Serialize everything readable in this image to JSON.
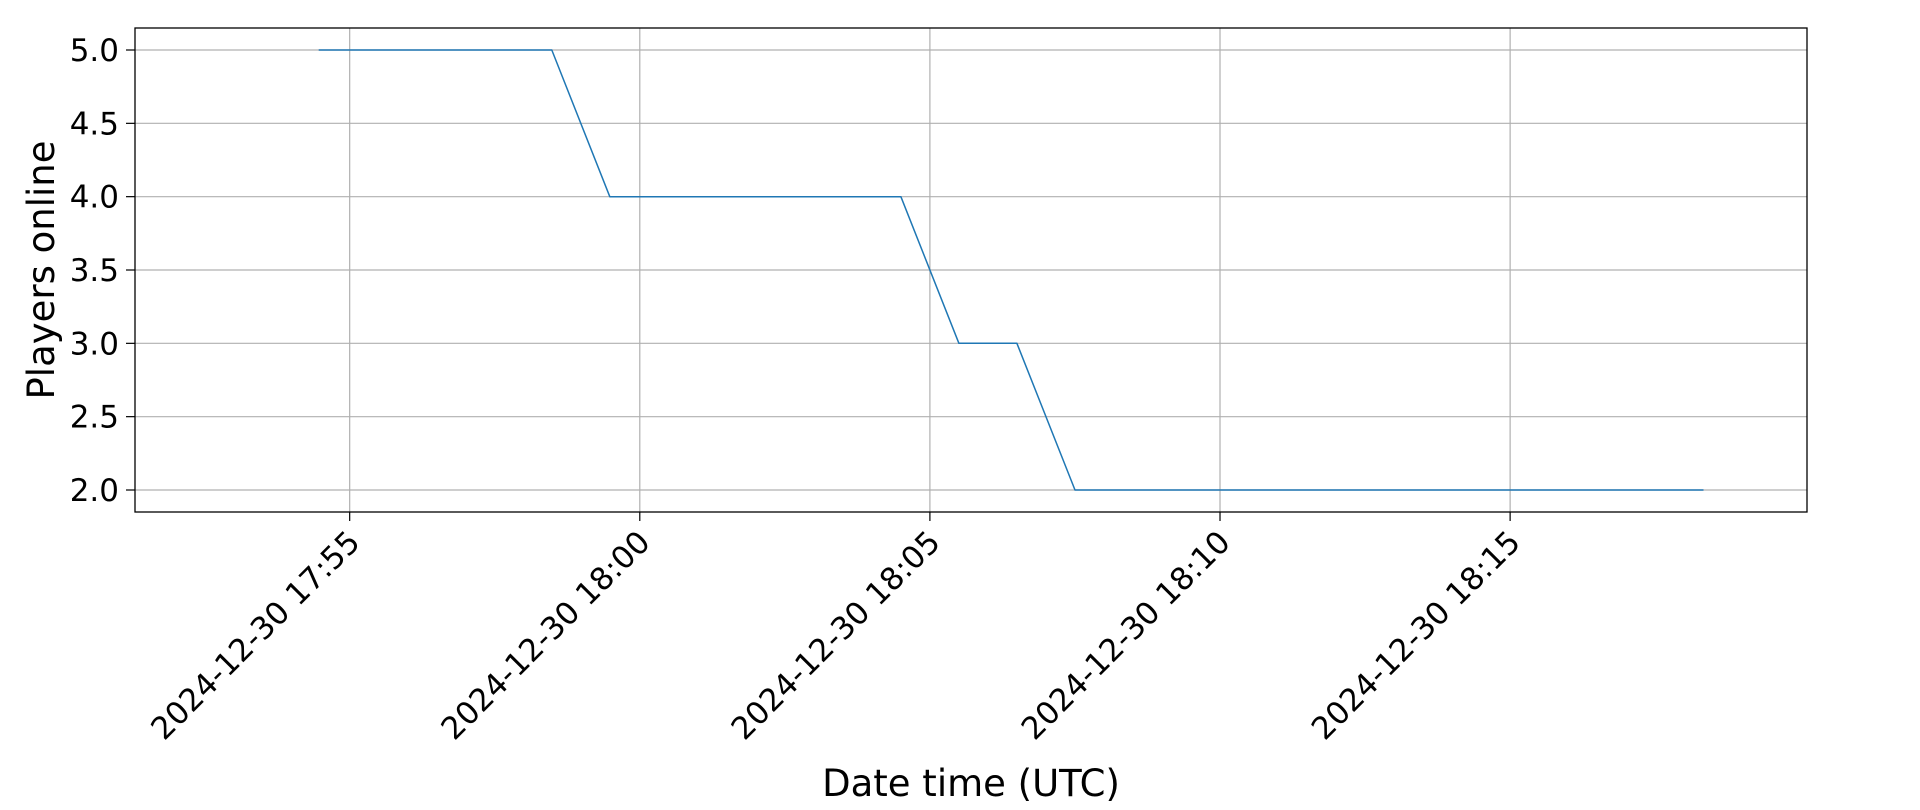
{
  "chart_data": {
    "type": "line",
    "title": "",
    "xlabel": "Date time (UTC)",
    "ylabel": "Players online",
    "xlim": [
      "2024-12-30 17:51:18",
      "2024-12-30 18:20:07"
    ],
    "ylim": [
      1.85,
      5.15
    ],
    "x_ticks": [
      {
        "value": "2024-12-30 17:55:00",
        "label": "2024-12-30 17:55"
      },
      {
        "value": "2024-12-30 18:00:00",
        "label": "2024-12-30 18:00"
      },
      {
        "value": "2024-12-30 18:05:00",
        "label": "2024-12-30 18:05"
      },
      {
        "value": "2024-12-30 18:10:00",
        "label": "2024-12-30 18:10"
      },
      {
        "value": "2024-12-30 18:15:00",
        "label": "2024-12-30 18:15"
      }
    ],
    "y_ticks": [
      {
        "value": 2.0,
        "label": "2.0"
      },
      {
        "value": 2.5,
        "label": "2.5"
      },
      {
        "value": 3.0,
        "label": "3.0"
      },
      {
        "value": 3.5,
        "label": "3.5"
      },
      {
        "value": 4.0,
        "label": "4.0"
      },
      {
        "value": 4.5,
        "label": "4.5"
      },
      {
        "value": 5.0,
        "label": "5.0"
      }
    ],
    "grid": true,
    "legend": "none",
    "series": [
      {
        "color": "#1f77b4",
        "points": [
          {
            "x": "2024-12-30 17:54:28",
            "y": 5
          },
          {
            "x": "2024-12-30 17:58:29",
            "y": 5
          },
          {
            "x": "2024-12-30 17:59:29",
            "y": 4
          },
          {
            "x": "2024-12-30 18:04:30",
            "y": 4
          },
          {
            "x": "2024-12-30 18:05:30",
            "y": 3
          },
          {
            "x": "2024-12-30 18:06:30",
            "y": 3
          },
          {
            "x": "2024-12-30 18:07:30",
            "y": 2
          },
          {
            "x": "2024-12-30 18:18:20",
            "y": 2
          }
        ]
      }
    ]
  }
}
